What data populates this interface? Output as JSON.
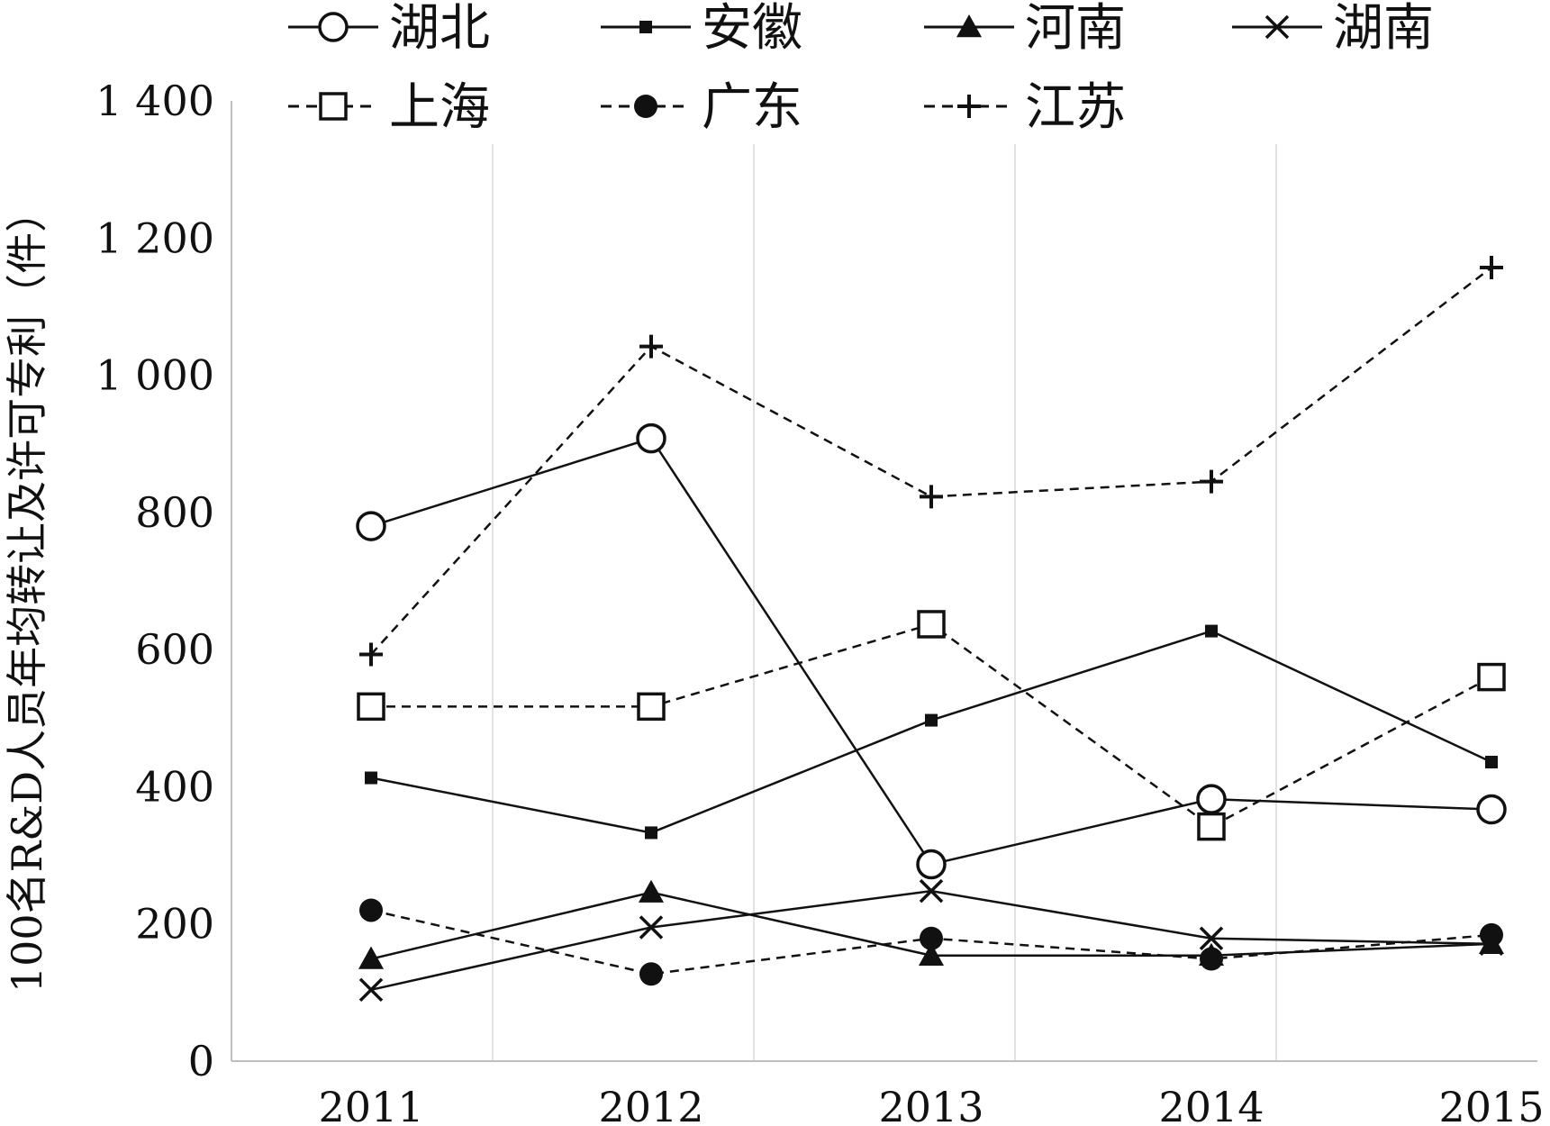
{
  "chart_data": {
    "type": "line",
    "ylabel": "100名R&D人员年均转让及许可专利（件）",
    "xlabel": "",
    "categories": [
      "2011",
      "2012",
      "2013",
      "2014",
      "2015"
    ],
    "ylim": [
      0,
      1400
    ],
    "yticks": [
      0,
      200,
      400,
      600,
      800,
      1000,
      1200,
      1400
    ],
    "ytick_labels": [
      "0",
      "200",
      "400",
      "600",
      "800",
      "1 000",
      "1 200",
      "1 400"
    ],
    "grid": "vertical",
    "legend_position": "top",
    "series": [
      {
        "name": "湖北",
        "values": [
          780,
          908,
          287,
          382,
          367
        ],
        "marker": "open-circle",
        "line": "solid"
      },
      {
        "name": "安徽",
        "values": [
          413,
          333,
          497,
          627,
          436
        ],
        "marker": "filled-square",
        "line": "solid"
      },
      {
        "name": "河南",
        "values": [
          149,
          246,
          154,
          154,
          171
        ],
        "marker": "filled-triangle",
        "line": "solid"
      },
      {
        "name": "湖南",
        "values": [
          104,
          195,
          248,
          179,
          171
        ],
        "marker": "x",
        "line": "solid"
      },
      {
        "name": "上海",
        "values": [
          517,
          517,
          637,
          342,
          560
        ],
        "marker": "open-square",
        "line": "dashed"
      },
      {
        "name": "广东",
        "values": [
          220,
          127,
          179,
          149,
          184
        ],
        "marker": "filled-circle",
        "line": "dashed"
      },
      {
        "name": "江苏",
        "values": [
          593,
          1042,
          823,
          845,
          1157
        ],
        "marker": "plus",
        "line": "dashed"
      }
    ]
  }
}
